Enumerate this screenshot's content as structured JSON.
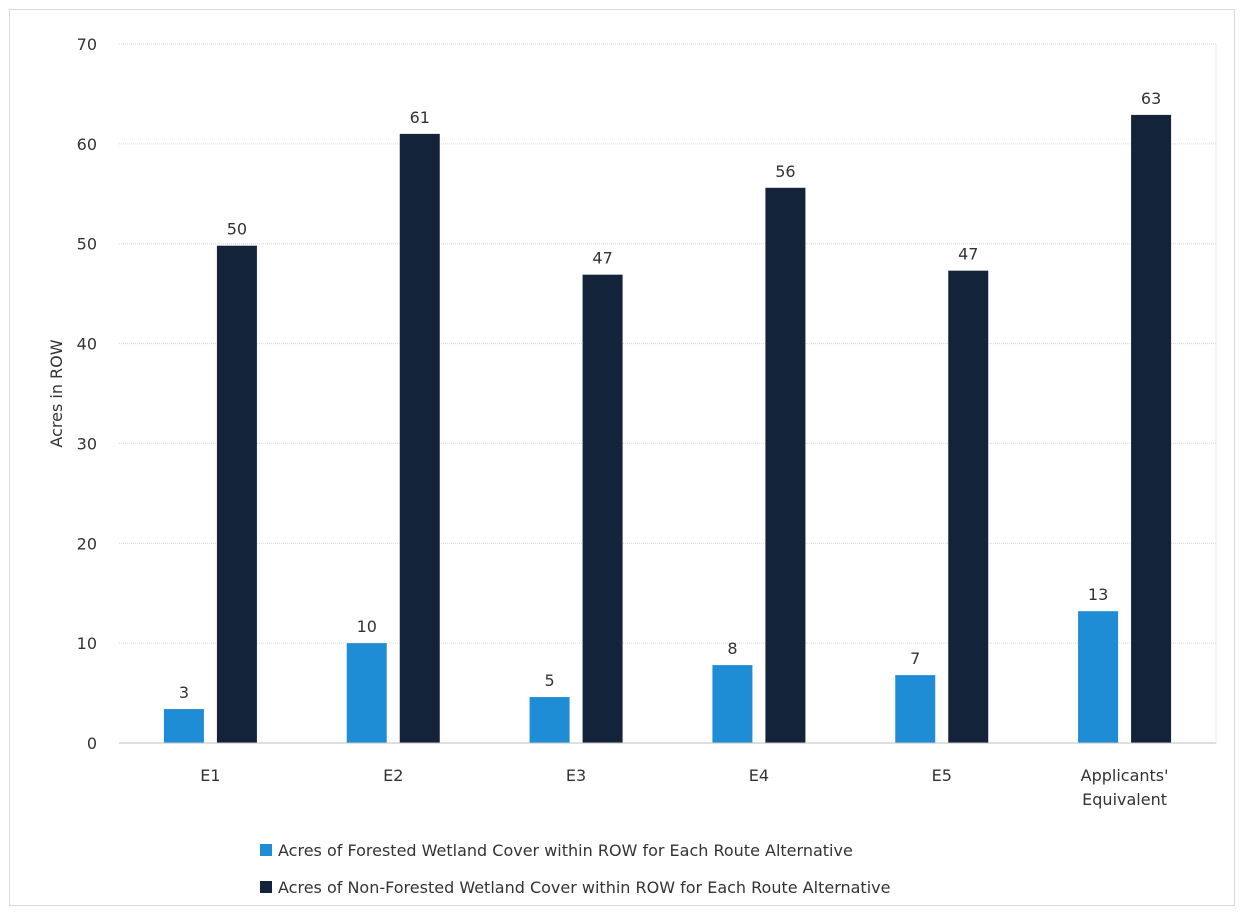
{
  "chart_data": {
    "type": "bar",
    "ylabel": "Acres in ROW",
    "xlabel": "",
    "ylim": [
      0,
      70
    ],
    "yticks": [
      0,
      10,
      20,
      30,
      40,
      50,
      60,
      70
    ],
    "grid": true,
    "legend_position": "bottom",
    "categories": [
      [
        "E1"
      ],
      [
        "E2"
      ],
      [
        "E3"
      ],
      [
        "E4"
      ],
      [
        "E5"
      ],
      [
        "Applicants'",
        "Equivalent"
      ]
    ],
    "series": [
      {
        "name": "Acres of Forested Wetland Cover within ROW for Each Route Alternative",
        "color": "#1f8dd6",
        "values": [
          3.4,
          10.0,
          4.6,
          7.8,
          6.8,
          13.2
        ],
        "labels": [
          "3",
          "10",
          "5",
          "8",
          "7",
          "13"
        ]
      },
      {
        "name": "Acres of Non-Forested Wetland Cover within ROW for Each Route Alternative",
        "color": "#13243a",
        "values": [
          49.8,
          61.0,
          46.9,
          55.6,
          47.3,
          62.9
        ],
        "labels": [
          "50",
          "61",
          "47",
          "56",
          "47",
          "63"
        ]
      }
    ]
  }
}
